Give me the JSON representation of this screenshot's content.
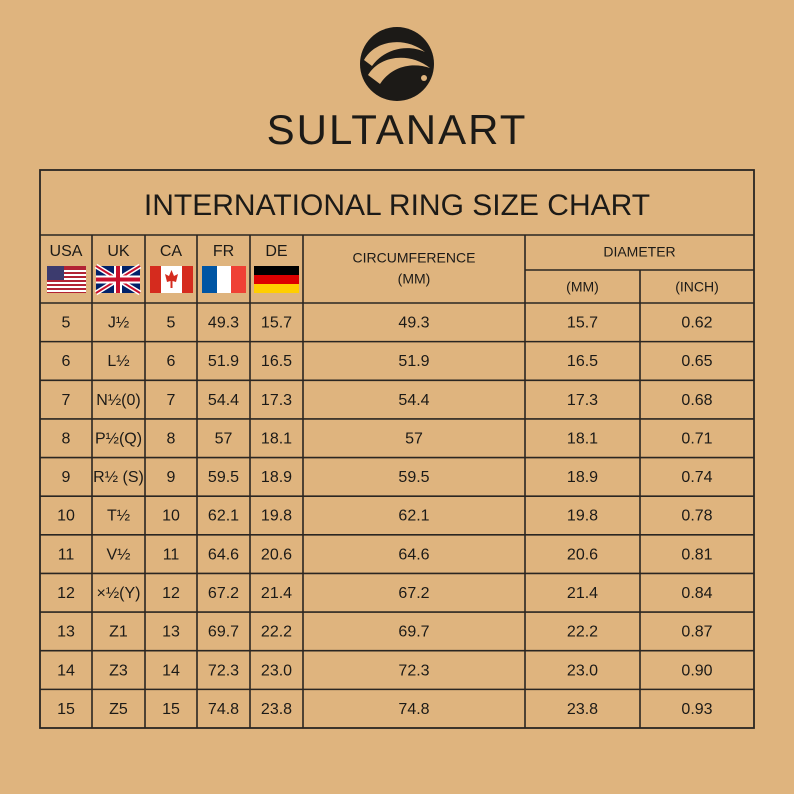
{
  "brand": "SULTANART",
  "table": {
    "title": "INTERNATIONAL RING SIZE CHART",
    "country_headers": [
      "USA",
      "UK",
      "CA",
      "FR",
      "DE"
    ],
    "circumference": {
      "label": "CIRCUMFERENCE",
      "unit": "(MM)"
    },
    "diameter": {
      "label": "DIAMETER",
      "units": [
        "(MM)",
        "(INCH)"
      ]
    },
    "rows": [
      [
        "5",
        "J½",
        "5",
        "49.3",
        "15.7",
        "49.3",
        "15.7",
        "0.62"
      ],
      [
        "6",
        "L½",
        "6",
        "51.9",
        "16.5",
        "51.9",
        "16.5",
        "0.65"
      ],
      [
        "7",
        "N½(0)",
        "7",
        "54.4",
        "17.3",
        "54.4",
        "17.3",
        "0.68"
      ],
      [
        "8",
        "P½(Q)",
        "8",
        "57",
        "18.1",
        "57",
        "18.1",
        "0.71"
      ],
      [
        "9",
        "R½ (S)",
        "9",
        "59.5",
        "18.9",
        "59.5",
        "18.9",
        "0.74"
      ],
      [
        "10",
        "T½",
        "10",
        "62.1",
        "19.8",
        "62.1",
        "19.8",
        "0.78"
      ],
      [
        "11",
        "V½",
        "11",
        "64.6",
        "20.6",
        "64.6",
        "20.6",
        "0.81"
      ],
      [
        "12",
        "×½(Y)",
        "12",
        "67.2",
        "21.4",
        "67.2",
        "21.4",
        "0.84"
      ],
      [
        "13",
        "Z1",
        "13",
        "69.7",
        "22.2",
        "69.7",
        "22.2",
        "0.87"
      ],
      [
        "14",
        "Z3",
        "14",
        "72.3",
        "23.0",
        "72.3",
        "23.0",
        "0.90"
      ],
      [
        "15",
        "Z5",
        "15",
        "74.8",
        "23.8",
        "74.8",
        "23.8",
        "0.93"
      ]
    ]
  }
}
